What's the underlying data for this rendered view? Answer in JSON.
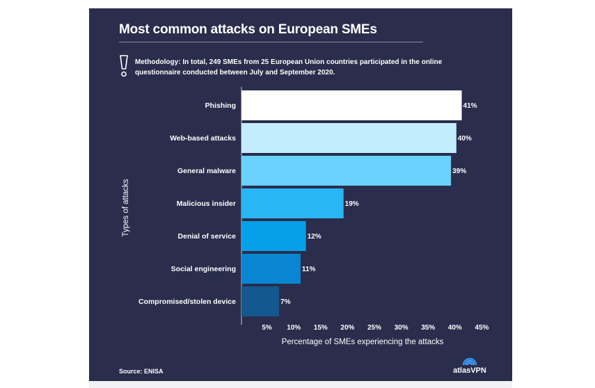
{
  "header": {
    "title": "Most common attacks on European SMEs",
    "methodology": "Methodology: In total, 249 SMEs from 25 European Union countries participated in the online questionnaire conducted between July and September 2020."
  },
  "footer": {
    "source": "Source: ENISA",
    "logo_text": "atlasVPN"
  },
  "colors": {
    "background": "#2a2d4c",
    "text": "#ffffff",
    "bars": [
      "#ffffff",
      "#c3ecfd",
      "#69d1fe",
      "#29b6f6",
      "#06a0e9",
      "#0886d2",
      "#13598f"
    ]
  },
  "chart_data": {
    "type": "bar",
    "orientation": "horizontal",
    "title": "Most common attacks on European SMEs",
    "xlabel": "Percentage of SMEs experiencing the attacks",
    "ylabel": "Types of attacks",
    "categories": [
      "Phishing",
      "Web-based attacks",
      "General malware",
      "Malicious insider",
      "Denial of service",
      "Social engineering",
      "Compromised/stolen device"
    ],
    "values": [
      41,
      40,
      39,
      19,
      12,
      11,
      7
    ],
    "value_labels": [
      "41%",
      "40%",
      "39%",
      "19%",
      "12%",
      "11%",
      "7%"
    ],
    "xticks": [
      "5%",
      "10%",
      "15%",
      "20%",
      "25%",
      "30%",
      "35%",
      "40%",
      "45%"
    ],
    "xlim": [
      0,
      45
    ],
    "grid": false
  }
}
